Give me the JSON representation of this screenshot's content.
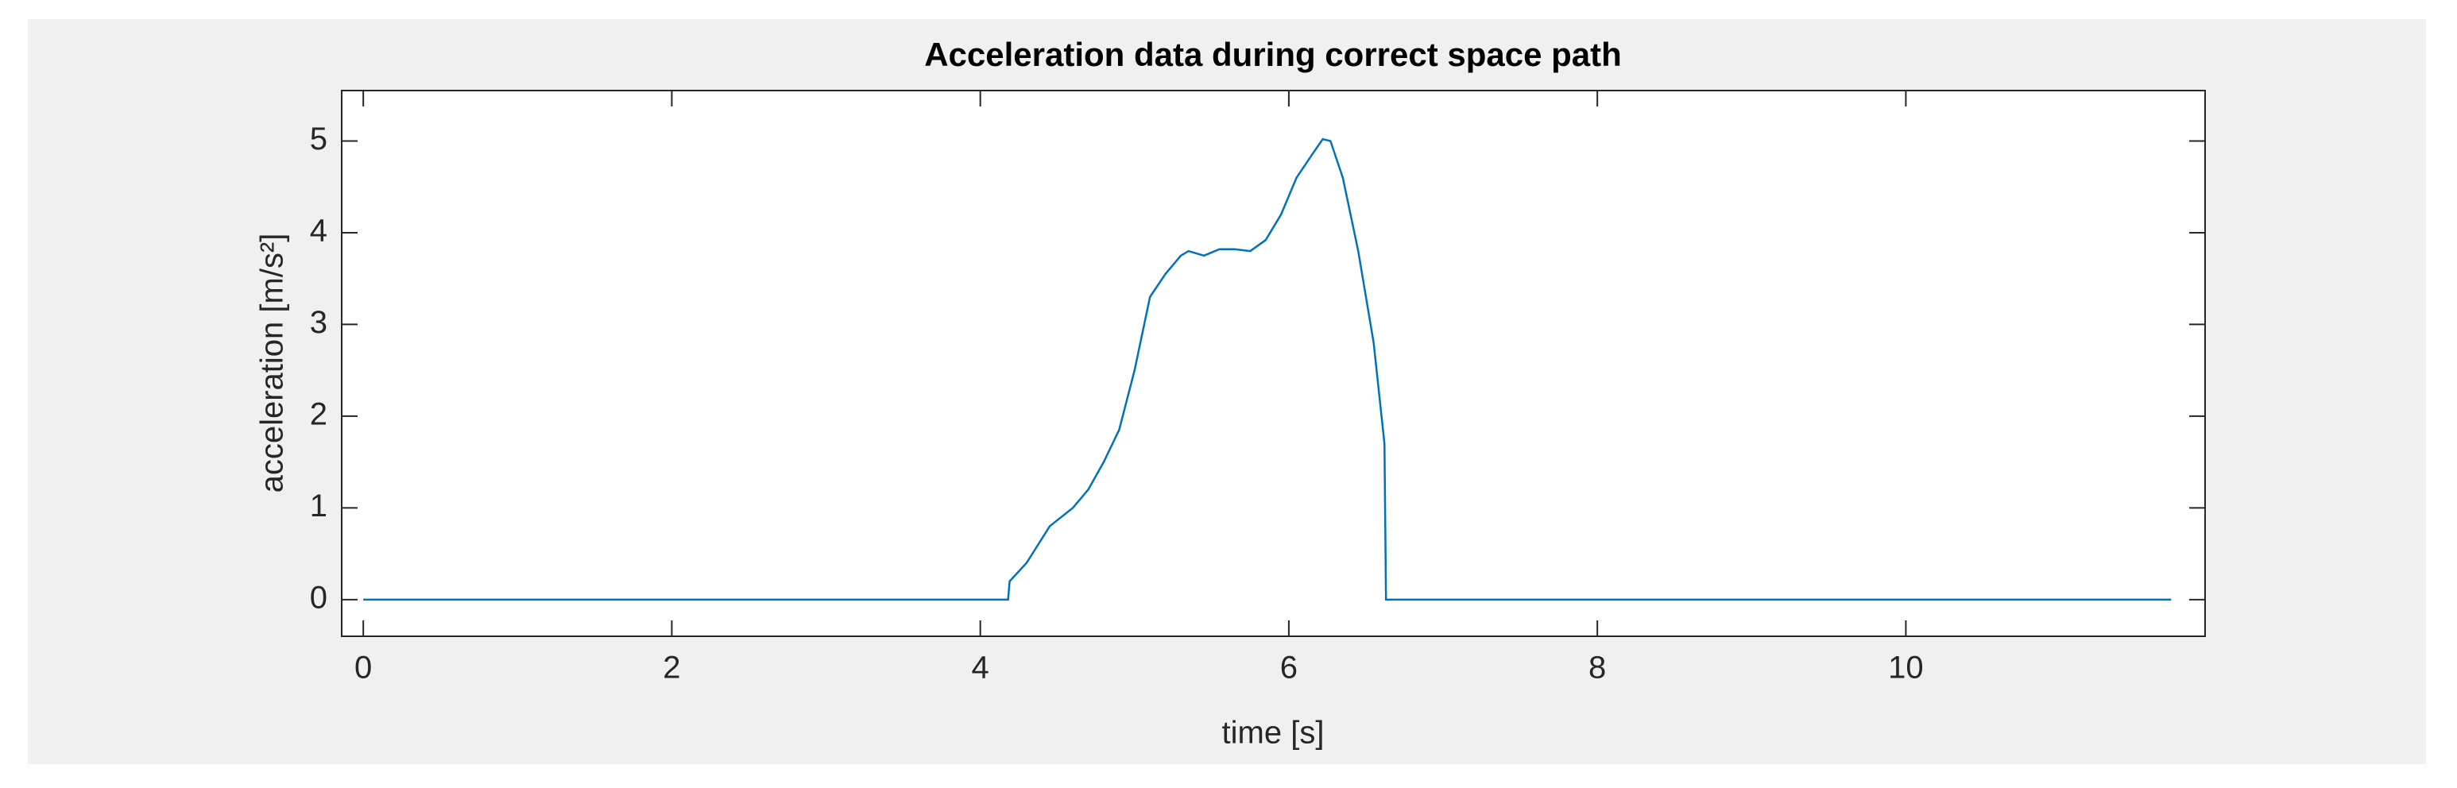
{
  "chart_data": {
    "type": "line",
    "title": "Acceleration data during correct space path",
    "xlabel": "time [s]",
    "ylabel": "acceleration [m/s²]",
    "x": [
      0,
      4.18,
      4.19,
      4.3,
      4.45,
      4.6,
      4.7,
      4.8,
      4.9,
      5.0,
      5.1,
      5.2,
      5.3,
      5.35,
      5.45,
      5.55,
      5.65,
      5.75,
      5.85,
      5.95,
      6.05,
      6.15,
      6.22,
      6.27,
      6.35,
      6.45,
      6.55,
      6.62,
      6.63,
      11.72
    ],
    "series": [
      {
        "color": "#0072bd",
        "values": [
          0,
          0,
          0.2,
          0.4,
          0.8,
          1.0,
          1.2,
          1.5,
          1.85,
          2.5,
          3.3,
          3.55,
          3.75,
          3.8,
          3.75,
          3.82,
          3.82,
          3.8,
          3.92,
          4.2,
          4.6,
          4.85,
          5.02,
          5.0,
          4.6,
          3.8,
          2.8,
          1.7,
          0,
          0
        ]
      }
    ],
    "xlim": [
      -0.14,
      11.94
    ],
    "ylim": [
      -0.4,
      5.55
    ],
    "xticks": [
      0,
      2,
      4,
      6,
      8,
      10
    ],
    "yticks": [
      0,
      1,
      2,
      3,
      4,
      5
    ],
    "grid": false
  }
}
